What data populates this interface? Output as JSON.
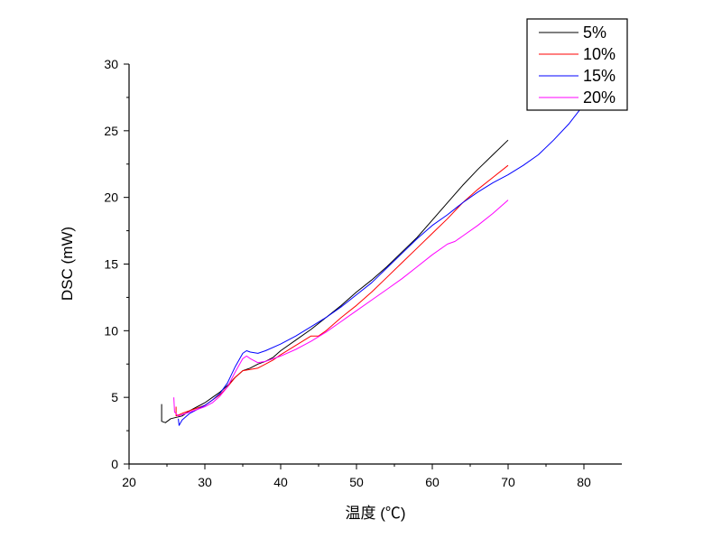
{
  "chart_data": {
    "type": "line",
    "xlabel": "温度 (℃)",
    "ylabel": "DSC (mW)",
    "xlim": [
      20,
      85
    ],
    "ylim": [
      0,
      30
    ],
    "xticks": [
      20,
      30,
      40,
      50,
      60,
      70,
      80
    ],
    "yticks": [
      0,
      5,
      10,
      15,
      20,
      25,
      30
    ],
    "grid": false,
    "legend_position": "top-right",
    "series": [
      {
        "name": "5%",
        "color": "#000000",
        "points": [
          [
            24.3,
            4.5
          ],
          [
            24.3,
            3.2
          ],
          [
            24.8,
            3.1
          ],
          [
            25.5,
            3.4
          ],
          [
            27,
            3.6
          ],
          [
            28,
            4.0
          ],
          [
            29,
            4.3
          ],
          [
            30,
            4.6
          ],
          [
            31,
            5.0
          ],
          [
            32,
            5.4
          ],
          [
            33,
            5.9
          ],
          [
            34,
            6.5
          ],
          [
            35,
            7.0
          ],
          [
            36,
            7.2
          ],
          [
            37,
            7.5
          ],
          [
            38,
            7.7
          ],
          [
            39,
            8.0
          ],
          [
            40,
            8.5
          ],
          [
            42,
            9.3
          ],
          [
            44,
            10.1
          ],
          [
            46,
            11.0
          ],
          [
            48,
            11.9
          ],
          [
            50,
            12.9
          ],
          [
            52,
            13.8
          ],
          [
            54,
            14.8
          ],
          [
            56,
            15.9
          ],
          [
            58,
            17.0
          ],
          [
            60,
            18.3
          ],
          [
            62,
            19.6
          ],
          [
            64,
            20.9
          ],
          [
            66,
            22.1
          ],
          [
            68,
            23.2
          ],
          [
            70,
            24.3
          ]
        ]
      },
      {
        "name": "10%",
        "color": "#ff0000",
        "points": [
          [
            26.2,
            4.3
          ],
          [
            26.2,
            3.6
          ],
          [
            27,
            3.8
          ],
          [
            28,
            4.0
          ],
          [
            29,
            4.2
          ],
          [
            30,
            4.4
          ],
          [
            31,
            4.8
          ],
          [
            32,
            5.2
          ],
          [
            33,
            5.8
          ],
          [
            34,
            6.5
          ],
          [
            35,
            7.0
          ],
          [
            36,
            7.1
          ],
          [
            37,
            7.2
          ],
          [
            38,
            7.5
          ],
          [
            39,
            7.8
          ],
          [
            40,
            8.2
          ],
          [
            42,
            8.9
          ],
          [
            44,
            9.6
          ],
          [
            45,
            9.6
          ],
          [
            46,
            10.0
          ],
          [
            48,
            11.0
          ],
          [
            50,
            11.9
          ],
          [
            52,
            12.9
          ],
          [
            54,
            14.0
          ],
          [
            56,
            15.1
          ],
          [
            58,
            16.2
          ],
          [
            60,
            17.3
          ],
          [
            62,
            18.4
          ],
          [
            64,
            19.6
          ],
          [
            66,
            20.6
          ],
          [
            68,
            21.5
          ],
          [
            70,
            22.4
          ]
        ]
      },
      {
        "name": "15%",
        "color": "#0000ff",
        "points": [
          [
            26.5,
            3.4
          ],
          [
            26.6,
            2.9
          ],
          [
            27,
            3.3
          ],
          [
            28,
            3.8
          ],
          [
            29,
            4.1
          ],
          [
            30,
            4.4
          ],
          [
            31,
            4.8
          ],
          [
            32,
            5.3
          ],
          [
            33,
            6.1
          ],
          [
            34,
            7.3
          ],
          [
            35,
            8.3
          ],
          [
            35.5,
            8.5
          ],
          [
            36,
            8.4
          ],
          [
            37,
            8.3
          ],
          [
            38,
            8.5
          ],
          [
            40,
            9.0
          ],
          [
            42,
            9.6
          ],
          [
            44,
            10.3
          ],
          [
            46,
            11.0
          ],
          [
            48,
            11.8
          ],
          [
            50,
            12.7
          ],
          [
            52,
            13.6
          ],
          [
            54,
            14.7
          ],
          [
            56,
            15.8
          ],
          [
            58,
            16.9
          ],
          [
            60,
            17.9
          ],
          [
            62,
            18.7
          ],
          [
            64,
            19.6
          ],
          [
            66,
            20.4
          ],
          [
            68,
            21.1
          ],
          [
            70,
            21.7
          ],
          [
            72,
            22.4
          ],
          [
            74,
            23.2
          ],
          [
            76,
            24.3
          ],
          [
            78,
            25.5
          ],
          [
            79.5,
            26.6
          ]
        ]
      },
      {
        "name": "20%",
        "color": "#ff00ff",
        "points": [
          [
            25.9,
            5.0
          ],
          [
            26.0,
            3.9
          ],
          [
            26.5,
            3.6
          ],
          [
            27,
            3.7
          ],
          [
            28,
            3.9
          ],
          [
            29,
            4.1
          ],
          [
            30,
            4.3
          ],
          [
            31,
            4.6
          ],
          [
            32,
            5.1
          ],
          [
            33,
            5.8
          ],
          [
            34,
            6.9
          ],
          [
            35,
            7.9
          ],
          [
            35.5,
            8.1
          ],
          [
            36,
            7.9
          ],
          [
            37,
            7.6
          ],
          [
            38,
            7.7
          ],
          [
            40,
            8.1
          ],
          [
            42,
            8.6
          ],
          [
            44,
            9.2
          ],
          [
            46,
            9.9
          ],
          [
            48,
            10.7
          ],
          [
            50,
            11.5
          ],
          [
            52,
            12.3
          ],
          [
            54,
            13.1
          ],
          [
            56,
            13.9
          ],
          [
            58,
            14.8
          ],
          [
            60,
            15.7
          ],
          [
            62,
            16.5
          ],
          [
            63,
            16.7
          ],
          [
            64,
            17.1
          ],
          [
            66,
            17.9
          ],
          [
            68,
            18.8
          ],
          [
            70,
            19.8
          ]
        ]
      }
    ]
  }
}
